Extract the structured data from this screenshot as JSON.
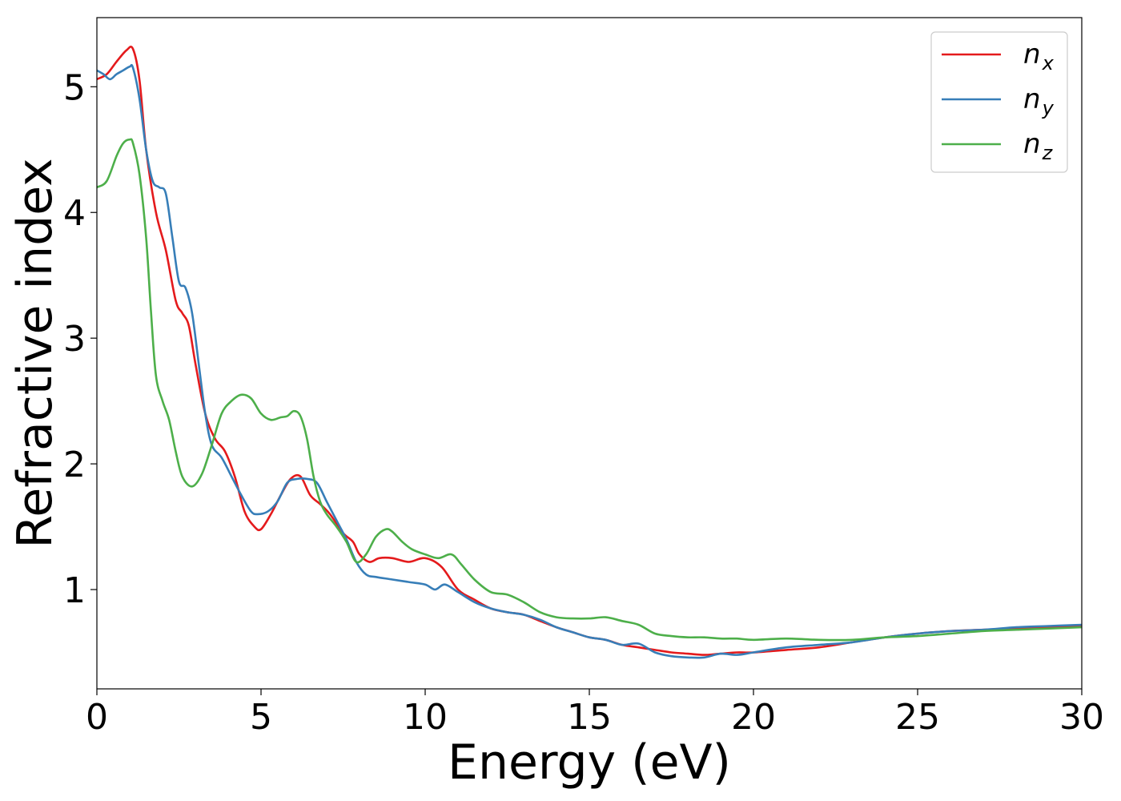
{
  "chart_data": {
    "type": "line",
    "xlabel": "Energy (eV)",
    "ylabel": "Refractive index",
    "xlim": [
      0,
      30
    ],
    "ylim": [
      0.21,
      5.55
    ],
    "xticks": [
      0,
      5,
      10,
      15,
      20,
      25,
      30
    ],
    "yticks": [
      1,
      2,
      3,
      4,
      5
    ],
    "grid": false,
    "legend_position": "top-right",
    "series": [
      {
        "name": "n_x",
        "label_base": "n",
        "label_sub": "x",
        "color": "#e41a1c",
        "x": [
          0,
          0.3,
          0.6,
          0.9,
          1.1,
          1.3,
          1.5,
          1.8,
          2.1,
          2.4,
          2.6,
          2.8,
          3.0,
          3.3,
          3.6,
          3.9,
          4.2,
          4.5,
          4.8,
          5.0,
          5.3,
          5.6,
          5.9,
          6.2,
          6.5,
          6.8,
          7.1,
          7.5,
          7.8,
          8.0,
          8.3,
          8.6,
          9.0,
          9.5,
          10.0,
          10.5,
          11.0,
          11.5,
          12.0,
          12.5,
          13.0,
          13.5,
          14.0,
          14.5,
          15.0,
          15.5,
          16.0,
          16.5,
          17.0,
          17.5,
          18.0,
          18.5,
          19.0,
          19.5,
          20.0,
          21.0,
          22.0,
          23.0,
          24.0,
          25.0,
          26.0,
          27.0,
          28.0,
          29.0,
          30.0
        ],
        "y": [
          5.06,
          5.1,
          5.2,
          5.29,
          5.3,
          5.05,
          4.5,
          4.0,
          3.7,
          3.3,
          3.2,
          3.1,
          2.8,
          2.4,
          2.2,
          2.1,
          1.9,
          1.62,
          1.5,
          1.48,
          1.6,
          1.75,
          1.88,
          1.9,
          1.75,
          1.68,
          1.6,
          1.45,
          1.38,
          1.28,
          1.22,
          1.25,
          1.25,
          1.22,
          1.25,
          1.18,
          1.0,
          0.92,
          0.85,
          0.82,
          0.8,
          0.75,
          0.7,
          0.66,
          0.62,
          0.6,
          0.56,
          0.54,
          0.52,
          0.5,
          0.49,
          0.48,
          0.49,
          0.5,
          0.5,
          0.52,
          0.54,
          0.58,
          0.62,
          0.65,
          0.67,
          0.68,
          0.69,
          0.7,
          0.71
        ]
      },
      {
        "name": "n_y",
        "label_base": "n",
        "label_sub": "y",
        "color": "#377eb8",
        "x": [
          0,
          0.2,
          0.4,
          0.6,
          0.8,
          1.0,
          1.1,
          1.3,
          1.5,
          1.7,
          1.9,
          2.1,
          2.3,
          2.5,
          2.7,
          2.9,
          3.1,
          3.3,
          3.5,
          3.8,
          4.1,
          4.4,
          4.7,
          4.9,
          5.2,
          5.5,
          5.8,
          6.1,
          6.4,
          6.7,
          7.0,
          7.3,
          7.6,
          7.9,
          8.2,
          8.5,
          9.0,
          9.5,
          10.0,
          10.3,
          10.6,
          11.0,
          11.5,
          12.0,
          12.5,
          13.0,
          13.5,
          14.0,
          14.5,
          15.0,
          15.5,
          16.0,
          16.5,
          17.0,
          17.5,
          18.0,
          18.5,
          19.0,
          19.5,
          20.0,
          21.0,
          22.0,
          23.0,
          24.0,
          25.0,
          26.0,
          27.0,
          28.0,
          29.0,
          30.0
        ],
        "y": [
          5.13,
          5.1,
          5.06,
          5.1,
          5.13,
          5.16,
          5.15,
          4.9,
          4.5,
          4.25,
          4.2,
          4.15,
          3.8,
          3.45,
          3.4,
          3.2,
          2.8,
          2.4,
          2.15,
          2.05,
          1.9,
          1.75,
          1.62,
          1.6,
          1.62,
          1.7,
          1.85,
          1.88,
          1.88,
          1.85,
          1.7,
          1.55,
          1.4,
          1.22,
          1.12,
          1.1,
          1.08,
          1.06,
          1.04,
          1.0,
          1.04,
          0.98,
          0.9,
          0.85,
          0.82,
          0.8,
          0.76,
          0.7,
          0.66,
          0.62,
          0.6,
          0.56,
          0.57,
          0.5,
          0.47,
          0.46,
          0.46,
          0.49,
          0.48,
          0.5,
          0.54,
          0.56,
          0.58,
          0.62,
          0.65,
          0.67,
          0.68,
          0.7,
          0.71,
          0.72
        ]
      },
      {
        "name": "n_z",
        "label_base": "n",
        "label_sub": "z",
        "color": "#4daf4a",
        "x": [
          0,
          0.3,
          0.6,
          0.8,
          1.0,
          1.1,
          1.3,
          1.5,
          1.65,
          1.8,
          2.0,
          2.2,
          2.4,
          2.6,
          2.9,
          3.2,
          3.5,
          3.8,
          4.1,
          4.4,
          4.7,
          5.0,
          5.3,
          5.6,
          5.8,
          6.0,
          6.2,
          6.4,
          6.6,
          6.8,
          7.0,
          7.3,
          7.6,
          7.9,
          8.2,
          8.5,
          8.8,
          9.0,
          9.3,
          9.6,
          10.0,
          10.4,
          10.8,
          11.1,
          11.5,
          12.0,
          12.5,
          13.0,
          13.5,
          14.0,
          14.5,
          15.0,
          15.5,
          16.0,
          16.5,
          17.0,
          17.5,
          18.0,
          18.5,
          19.0,
          19.5,
          20.0,
          21.0,
          22.0,
          23.0,
          24.0,
          25.0,
          26.0,
          27.0,
          28.0,
          29.0,
          30.0
        ],
        "y": [
          4.2,
          4.25,
          4.45,
          4.55,
          4.58,
          4.55,
          4.3,
          3.8,
          3.2,
          2.7,
          2.5,
          2.35,
          2.1,
          1.9,
          1.82,
          1.92,
          2.15,
          2.4,
          2.5,
          2.55,
          2.52,
          2.4,
          2.35,
          2.37,
          2.38,
          2.42,
          2.38,
          2.2,
          1.9,
          1.7,
          1.6,
          1.5,
          1.38,
          1.22,
          1.28,
          1.42,
          1.48,
          1.46,
          1.38,
          1.32,
          1.28,
          1.25,
          1.28,
          1.2,
          1.08,
          0.98,
          0.96,
          0.9,
          0.82,
          0.78,
          0.77,
          0.77,
          0.78,
          0.75,
          0.72,
          0.65,
          0.63,
          0.62,
          0.62,
          0.61,
          0.61,
          0.6,
          0.61,
          0.6,
          0.6,
          0.62,
          0.63,
          0.65,
          0.67,
          0.68,
          0.69,
          0.7
        ]
      }
    ]
  }
}
